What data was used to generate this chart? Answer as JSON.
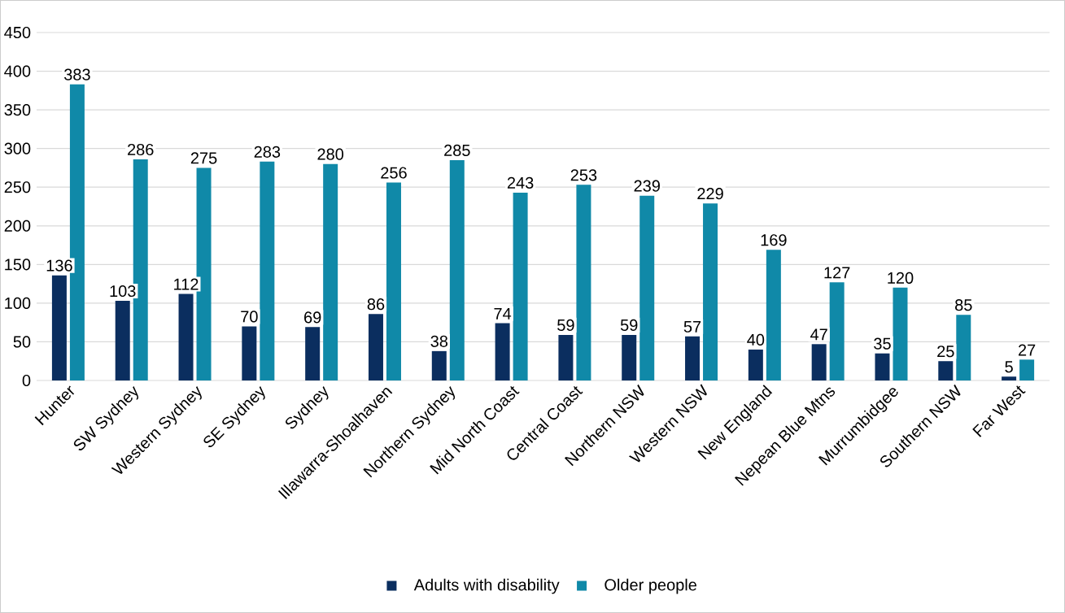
{
  "chart_data": {
    "type": "bar",
    "categories": [
      "Hunter",
      "SW Sydney",
      "Western Sydney",
      "SE Sydney",
      "Sydney",
      "Illawarra-Shoalhaven",
      "Northern Sydney",
      "Mid North Coast",
      "Central Coast",
      "Northern NSW",
      "Western NSW",
      "New England",
      "Nepean Blue Mtns",
      "Murrumbidgee",
      "Southern NSW",
      "Far West"
    ],
    "series": [
      {
        "name": "Adults with disability",
        "color": "#0b2e5f",
        "values": [
          136,
          103,
          112,
          70,
          69,
          86,
          38,
          74,
          59,
          59,
          57,
          40,
          47,
          35,
          25,
          5
        ]
      },
      {
        "name": "Older people",
        "color": "#1089a8",
        "values": [
          383,
          286,
          275,
          283,
          280,
          256,
          285,
          243,
          253,
          239,
          229,
          169,
          127,
          120,
          85,
          27
        ]
      }
    ],
    "ylim": [
      0,
      450
    ],
    "yticks": [
      0,
      50,
      100,
      150,
      200,
      250,
      300,
      350,
      400,
      450
    ],
    "grid": "y",
    "legend": "bottom",
    "data_labels": true
  }
}
